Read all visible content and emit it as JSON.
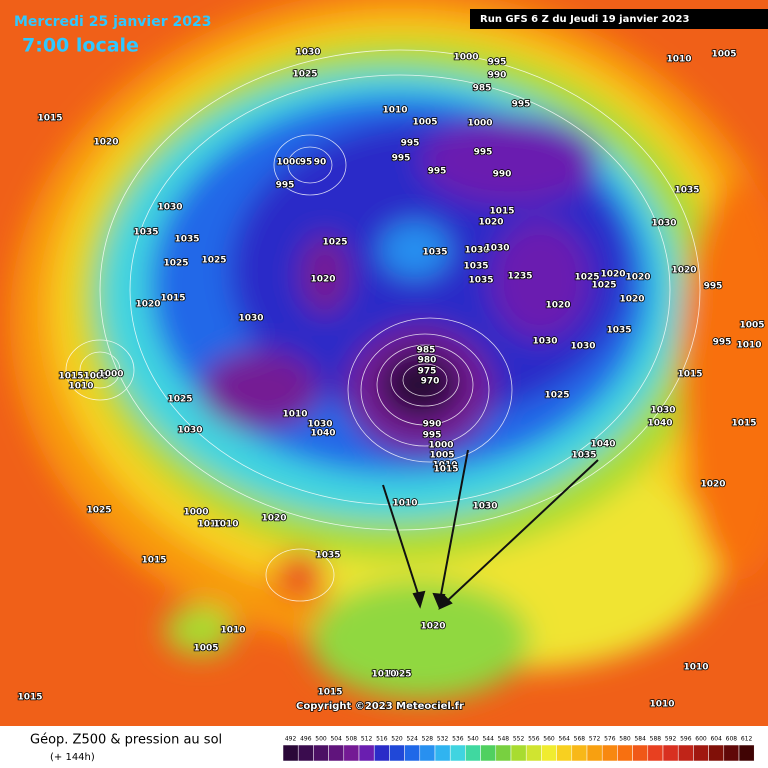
{
  "header": {
    "date": "Mercredi 25 janvier 2023",
    "time": "7:00 locale",
    "run": "Run GFS 6 Z du Jeudi 19 janvier 2023"
  },
  "map": {
    "copyright": "Copyright ©2023 Meteociel.fr",
    "pressure_labels": [
      1030,
      1025,
      1000,
      995,
      990,
      985,
      995,
      1005,
      1010,
      1015,
      1020,
      1010,
      1005,
      1000,
      995,
      995,
      995,
      995,
      990,
      1000,
      95,
      90,
      995,
      1030,
      1035,
      1035,
      1025,
      1025,
      1025,
      1035,
      1030,
      1030,
      1035,
      1035,
      1235,
      1015,
      1020,
      1020,
      1025,
      1020,
      1020,
      1025,
      1020,
      1020,
      1035,
      1030,
      1020,
      995,
      1020,
      1015,
      1030,
      1035,
      1005,
      995,
      1010,
      1030,
      1030,
      985,
      980,
      975,
      970,
      1015,
      1005,
      1000,
      1010,
      1025,
      1030,
      1010,
      1030,
      1040,
      1025,
      1015,
      1030,
      1040,
      1015,
      990,
      995,
      1000,
      1005,
      1010,
      1015,
      1040,
      1035,
      1020,
      1010,
      1030,
      1025,
      1000,
      1010,
      1010,
      1020,
      1035,
      1015,
      1010,
      1005,
      1020,
      1025,
      1010,
      1015,
      1010,
      1015,
      1010
    ]
  },
  "footer": {
    "title": "Géop. Z500 & pression au sol",
    "lead": "(+ 144h)"
  },
  "legend": {
    "labels": [
      492,
      496,
      500,
      504,
      508,
      512,
      516,
      520,
      524,
      528,
      532,
      536,
      540,
      544,
      548,
      552,
      556,
      560,
      564,
      568,
      572,
      576,
      580,
      584,
      588,
      592,
      596,
      600,
      604,
      608,
      612
    ],
    "colors": [
      "#2a0838",
      "#3a0c4e",
      "#4c1064",
      "#60147c",
      "#741a94",
      "#6a1eb0",
      "#2a2cc8",
      "#2048d8",
      "#2068e8",
      "#2890f0",
      "#30b4f0",
      "#40d4e0",
      "#40d8a0",
      "#50d060",
      "#78d040",
      "#a8dc30",
      "#d0e430",
      "#f0ec30",
      "#f8d020",
      "#f8b818",
      "#f8a010",
      "#f88810",
      "#f87010",
      "#f05818",
      "#e84020",
      "#d83020",
      "#c02418",
      "#a01810",
      "#801008",
      "#600808",
      "#400404"
    ]
  }
}
